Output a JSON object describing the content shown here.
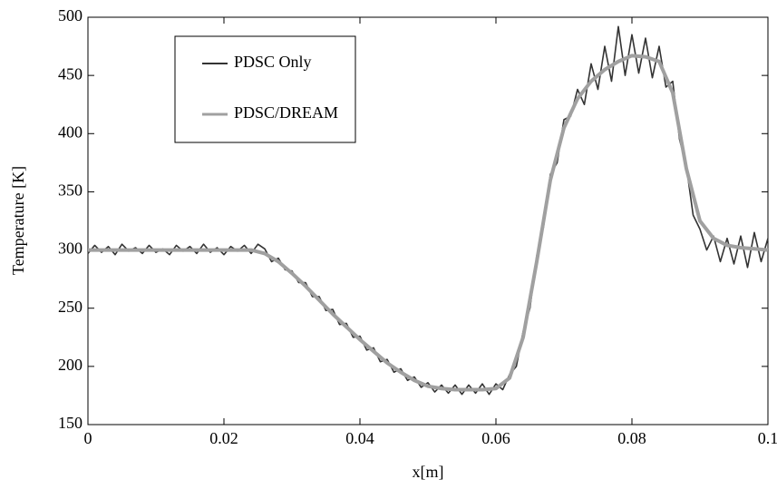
{
  "chart_data": {
    "type": "line",
    "x_label": "x[m]",
    "y_label": "Temperature [K]",
    "xlim": [
      0,
      0.1
    ],
    "xticks": [
      0,
      0.02,
      0.04,
      0.06,
      0.08,
      0.1
    ],
    "ylim": [
      150,
      500
    ],
    "yticks": [
      150,
      200,
      250,
      300,
      350,
      400,
      450,
      500
    ],
    "legend": "upper left",
    "series": [
      {
        "name": "PDSC Only",
        "color": "#333333",
        "x": [
          0,
          0.001,
          0.002,
          0.003,
          0.004,
          0.005,
          0.006,
          0.007,
          0.008,
          0.009,
          0.01,
          0.011,
          0.012,
          0.013,
          0.014,
          0.015,
          0.016,
          0.017,
          0.018,
          0.019,
          0.02,
          0.021,
          0.022,
          0.023,
          0.024,
          0.025,
          0.026,
          0.027,
          0.028,
          0.029,
          0.03,
          0.031,
          0.032,
          0.033,
          0.034,
          0.035,
          0.036,
          0.037,
          0.038,
          0.039,
          0.04,
          0.041,
          0.042,
          0.043,
          0.044,
          0.045,
          0.046,
          0.047,
          0.048,
          0.049,
          0.05,
          0.051,
          0.052,
          0.053,
          0.054,
          0.055,
          0.056,
          0.057,
          0.058,
          0.059,
          0.06,
          0.061,
          0.062,
          0.063,
          0.064,
          0.065,
          0.066,
          0.067,
          0.068,
          0.069,
          0.07,
          0.071,
          0.072,
          0.073,
          0.074,
          0.075,
          0.076,
          0.077,
          0.078,
          0.079,
          0.08,
          0.081,
          0.082,
          0.083,
          0.084,
          0.085,
          0.086,
          0.087,
          0.088,
          0.089,
          0.09,
          0.091,
          0.092,
          0.093,
          0.094,
          0.095,
          0.096,
          0.097,
          0.098,
          0.099,
          0.1
        ],
        "values": [
          297,
          304,
          298,
          303,
          296,
          305,
          299,
          302,
          297,
          304,
          298,
          301,
          296,
          304,
          299,
          303,
          297,
          305,
          298,
          302,
          296,
          303,
          299,
          304,
          297,
          305,
          301,
          290,
          293,
          283,
          282,
          272,
          272,
          260,
          260,
          248,
          249,
          236,
          237,
          225,
          226,
          214,
          216,
          204,
          206,
          195,
          198,
          188,
          191,
          182,
          186,
          178,
          184,
          177,
          184,
          176,
          184,
          177,
          185,
          176,
          185,
          180,
          193,
          200,
          230,
          250,
          295,
          320,
          365,
          375,
          412,
          415,
          438,
          425,
          460,
          438,
          475,
          445,
          492,
          450,
          485,
          452,
          482,
          448,
          475,
          440,
          445,
          395,
          372,
          330,
          318,
          300,
          312,
          290,
          310,
          288,
          312,
          285,
          315,
          290,
          310
        ]
      },
      {
        "name": "PDSC/DREAM",
        "color": "#a0a0a0",
        "x": [
          0,
          0.002,
          0.004,
          0.006,
          0.008,
          0.01,
          0.012,
          0.014,
          0.016,
          0.018,
          0.02,
          0.022,
          0.024,
          0.026,
          0.028,
          0.03,
          0.032,
          0.034,
          0.036,
          0.038,
          0.04,
          0.042,
          0.044,
          0.046,
          0.048,
          0.05,
          0.052,
          0.054,
          0.056,
          0.058,
          0.06,
          0.062,
          0.064,
          0.066,
          0.068,
          0.07,
          0.072,
          0.074,
          0.076,
          0.078,
          0.08,
          0.082,
          0.084,
          0.086,
          0.088,
          0.09,
          0.092,
          0.094,
          0.096,
          0.098,
          0.1
        ],
        "values": [
          300,
          300,
          300,
          300,
          300,
          300,
          300,
          300,
          300,
          300,
          300,
          300,
          300,
          297,
          290,
          280,
          269,
          257,
          245,
          234,
          223,
          213,
          203,
          195,
          188,
          183,
          181,
          180,
          180,
          180,
          181,
          190,
          225,
          290,
          360,
          405,
          430,
          445,
          455,
          462,
          467,
          466,
          462,
          435,
          370,
          325,
          310,
          304,
          302,
          301,
          300
        ]
      }
    ]
  }
}
